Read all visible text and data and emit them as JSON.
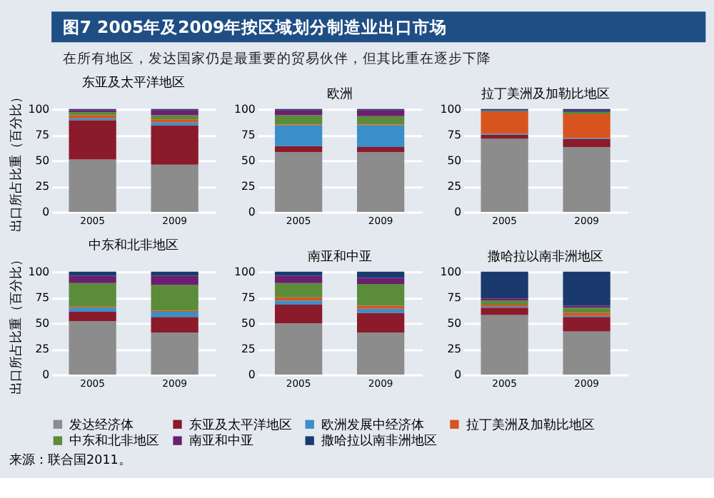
{
  "chart_data": [
    {
      "type": "other",
      "title": "图7 2005年及2009年按区域划分制造业出口市场",
      "subtitle": "在所有地区，发达国家仍是最重要的贸易伙伴，但其比重在逐步下降",
      "annotations": [
        "来源：联合国2011。"
      ]
    },
    {
      "type": "bar",
      "stacked": true,
      "title": "东亚及太平洋地区",
      "ylabel": "出口所占比重（百分比）",
      "categories": [
        "2005",
        "2009"
      ],
      "ylim": [
        0,
        100
      ],
      "yticks": [
        0,
        25,
        50,
        75,
        100
      ],
      "grid": "y",
      "legend": "bottom",
      "series": [
        {
          "name": "发达经济体",
          "color": "#8c8c8c",
          "values": [
            51,
            46
          ]
        },
        {
          "name": "东亚及太平洋地区",
          "color": "#8b1a2b",
          "values": [
            38,
            38
          ]
        },
        {
          "name": "欧洲发展中经济体",
          "color": "#3a8fc9",
          "values": [
            2,
            3
          ]
        },
        {
          "name": "拉丁美洲及加勒比地区",
          "color": "#d9531e",
          "values": [
            3,
            3
          ]
        },
        {
          "name": "中东和北非地区",
          "color": "#5b8c3a",
          "values": [
            3,
            4
          ]
        },
        {
          "name": "南亚和中亚",
          "color": "#6b1f6e",
          "values": [
            2,
            5
          ]
        },
        {
          "name": "撒哈拉以南非洲地区",
          "color": "#1a3a6e",
          "values": [
            1,
            1
          ]
        }
      ]
    },
    {
      "type": "bar",
      "stacked": true,
      "title": "欧洲",
      "categories": [
        "2005",
        "2009"
      ],
      "ylim": [
        0,
        100
      ],
      "yticks": [
        0,
        25,
        50,
        75,
        100
      ],
      "grid": "y",
      "series": [
        {
          "color": "#8c8c8c",
          "values": [
            58,
            58
          ]
        },
        {
          "color": "#8b1a2b",
          "values": [
            6,
            5
          ]
        },
        {
          "color": "#3a8fc9",
          "values": [
            20,
            21
          ]
        },
        {
          "color": "#d9531e",
          "values": [
            1,
            1
          ]
        },
        {
          "color": "#5b8c3a",
          "values": [
            9,
            8
          ]
        },
        {
          "color": "#6b1f6e",
          "values": [
            5,
            6
          ]
        },
        {
          "color": "#1a3a6e",
          "values": [
            1,
            1
          ]
        }
      ]
    },
    {
      "type": "bar",
      "stacked": true,
      "title": "拉丁美洲及加勒比地区",
      "categories": [
        "2005",
        "2009"
      ],
      "ylim": [
        0,
        100
      ],
      "yticks": [
        0,
        25,
        50,
        75,
        100
      ],
      "grid": "y",
      "series": [
        {
          "color": "#8c8c8c",
          "values": [
            71,
            63
          ]
        },
        {
          "color": "#8b1a2b",
          "values": [
            4,
            8
          ]
        },
        {
          "color": "#3a8fc9",
          "values": [
            1,
            1
          ]
        },
        {
          "color": "#d9531e",
          "values": [
            21,
            23
          ]
        },
        {
          "color": "#5b8c3a",
          "values": [
            1,
            2
          ]
        },
        {
          "color": "#6b1f6e",
          "values": [
            1,
            1
          ]
        },
        {
          "color": "#1a3a6e",
          "values": [
            1,
            2
          ]
        }
      ]
    },
    {
      "type": "bar",
      "stacked": true,
      "title": "中东和北非地区",
      "ylabel": "出口所占比重（百分比）",
      "categories": [
        "2005",
        "2009"
      ],
      "ylim": [
        0,
        100
      ],
      "yticks": [
        0,
        25,
        50,
        75,
        100
      ],
      "grid": "y",
      "series": [
        {
          "color": "#8c8c8c",
          "values": [
            52,
            41
          ]
        },
        {
          "color": "#8b1a2b",
          "values": [
            9,
            15
          ]
        },
        {
          "color": "#3a8fc9",
          "values": [
            4,
            5
          ]
        },
        {
          "color": "#d9531e",
          "values": [
            1,
            1
          ]
        },
        {
          "color": "#5b8c3a",
          "values": [
            23,
            25
          ]
        },
        {
          "color": "#6b1f6e",
          "values": [
            7,
            9
          ]
        },
        {
          "color": "#1a3a6e",
          "values": [
            4,
            4
          ]
        }
      ]
    },
    {
      "type": "bar",
      "stacked": true,
      "title": "南亚和中亚",
      "categories": [
        "2005",
        "2009"
      ],
      "ylim": [
        0,
        100
      ],
      "yticks": [
        0,
        25,
        50,
        75,
        100
      ],
      "grid": "y",
      "series": [
        {
          "color": "#8c8c8c",
          "values": [
            50,
            41
          ]
        },
        {
          "color": "#8b1a2b",
          "values": [
            18,
            19
          ]
        },
        {
          "color": "#3a8fc9",
          "values": [
            4,
            4
          ]
        },
        {
          "color": "#d9531e",
          "values": [
            3,
            3
          ]
        },
        {
          "color": "#5b8c3a",
          "values": [
            14,
            21
          ]
        },
        {
          "color": "#6b1f6e",
          "values": [
            7,
            6
          ]
        },
        {
          "color": "#1a3a6e",
          "values": [
            4,
            6
          ]
        }
      ]
    },
    {
      "type": "bar",
      "stacked": true,
      "title": "撒哈拉以南非洲地区",
      "categories": [
        "2005",
        "2009"
      ],
      "ylim": [
        0,
        100
      ],
      "yticks": [
        0,
        25,
        50,
        75,
        100
      ],
      "grid": "y",
      "series": [
        {
          "color": "#8c8c8c",
          "values": [
            58,
            42
          ]
        },
        {
          "color": "#8b1a2b",
          "values": [
            7,
            14
          ]
        },
        {
          "color": "#3a8fc9",
          "values": [
            1,
            1
          ]
        },
        {
          "color": "#d9531e",
          "values": [
            2,
            3
          ]
        },
        {
          "color": "#5b8c3a",
          "values": [
            4,
            5
          ]
        },
        {
          "color": "#6b1f6e",
          "values": [
            2,
            2
          ]
        },
        {
          "color": "#1a3a6e",
          "values": [
            26,
            33
          ]
        }
      ]
    }
  ]
}
